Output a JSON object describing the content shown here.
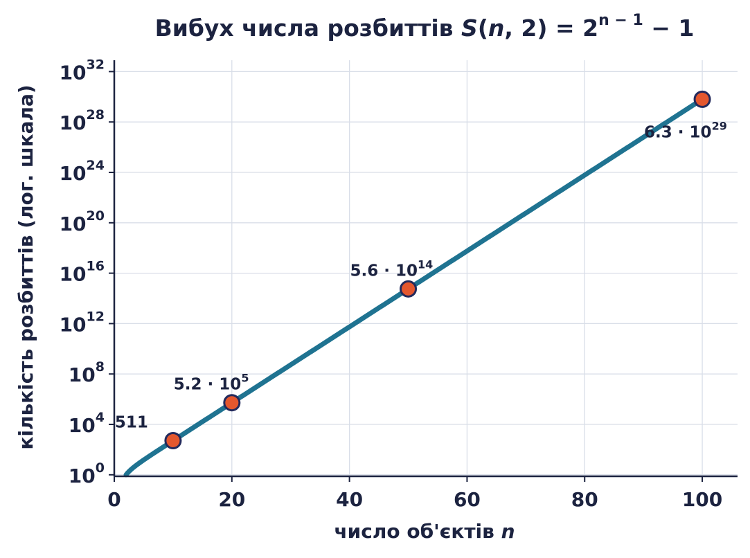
{
  "chart_data": {
    "type": "line",
    "title": "Вибух числа розбиттів S(n, 2) = 2^(n − 1) − 1",
    "title_parts": {
      "prefix": "Вибух числа розбиттів ",
      "S": "S",
      "open": "(",
      "n": "n",
      "comma": ", 2) = 2",
      "exp": "n − 1",
      "suffix": " − 1"
    },
    "xlabel": "число об'єктів n",
    "xlabel_parts": {
      "text": "число об'єктів ",
      "var": "n"
    },
    "ylabel": "кількість розбиттів (лог. шкала)",
    "y_scale": "log",
    "xlim": [
      0,
      106
    ],
    "ylim_log10": [
      -0.12,
      32.9
    ],
    "x_ticks": [
      0,
      20,
      40,
      60,
      80,
      100
    ],
    "y_ticks": [
      {
        "base": "10",
        "exp": "0",
        "log10": 0
      },
      {
        "base": "10",
        "exp": "4",
        "log10": 4
      },
      {
        "base": "10",
        "exp": "8",
        "log10": 8
      },
      {
        "base": "10",
        "exp": "12",
        "log10": 12
      },
      {
        "base": "10",
        "exp": "16",
        "log10": 16
      },
      {
        "base": "10",
        "exp": "20",
        "log10": 20
      },
      {
        "base": "10",
        "exp": "24",
        "log10": 24
      },
      {
        "base": "10",
        "exp": "28",
        "log10": 28
      },
      {
        "base": "10",
        "exp": "32",
        "log10": 32
      }
    ],
    "grid": true,
    "series": [
      {
        "formula": "2^(n-1) - 1",
        "n_start": 2,
        "n_end": 100,
        "color": "#1f7391"
      }
    ],
    "highlighted_points": [
      {
        "n": 10,
        "value": 511,
        "label": {
          "mantissa": "511",
          "base": "",
          "exp": ""
        },
        "label_pos": "upper-left"
      },
      {
        "n": 20,
        "value": 524287,
        "label": {
          "mantissa": "5.2 · ",
          "base": "10",
          "exp": "5"
        },
        "label_pos": "upper-left"
      },
      {
        "n": 50,
        "value": 562949953421310.0,
        "label": {
          "mantissa": "5.6 · ",
          "base": "10",
          "exp": "14"
        },
        "label_pos": "upper-left"
      },
      {
        "n": 100,
        "value": 6.338253001141147e+29,
        "label": {
          "mantissa": "6.3 · ",
          "base": "10",
          "exp": "29"
        },
        "label_pos": "lower-left"
      }
    ],
    "colors": {
      "line": "#1f7391",
      "marker_fill": "#e4572e",
      "marker_edge": "#232a5c",
      "text": "#1c2340",
      "grid": "#d9dee8"
    }
  }
}
